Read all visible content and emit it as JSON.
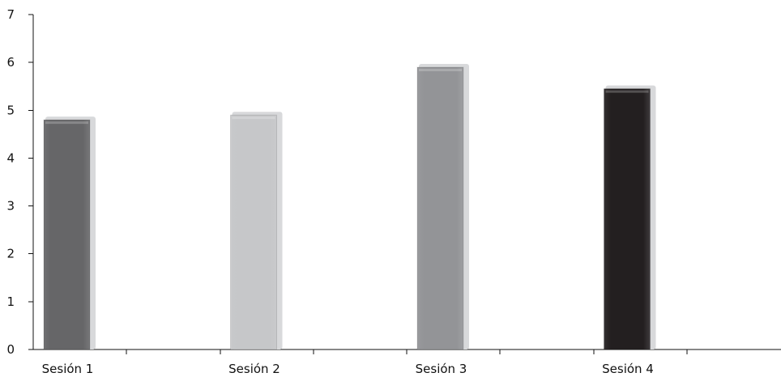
{
  "chart_data": {
    "type": "bar",
    "title": "",
    "xlabel": "",
    "ylabel": "",
    "categories": [
      "Sesión 1",
      "Sesión 2",
      "Sesión 3",
      "Sesión 4"
    ],
    "values": [
      4.8,
      4.9,
      5.9,
      5.45
    ],
    "ylim": [
      0,
      7
    ],
    "yticks": [
      "0",
      "1",
      "2",
      "3",
      "4",
      "5",
      "6",
      "7"
    ],
    "grid": false,
    "legend": "none",
    "bar_colors": [
      "#666668",
      "#c6c7c9",
      "#939497",
      "#231f20"
    ],
    "bar_highlight": "#d8d9db"
  }
}
